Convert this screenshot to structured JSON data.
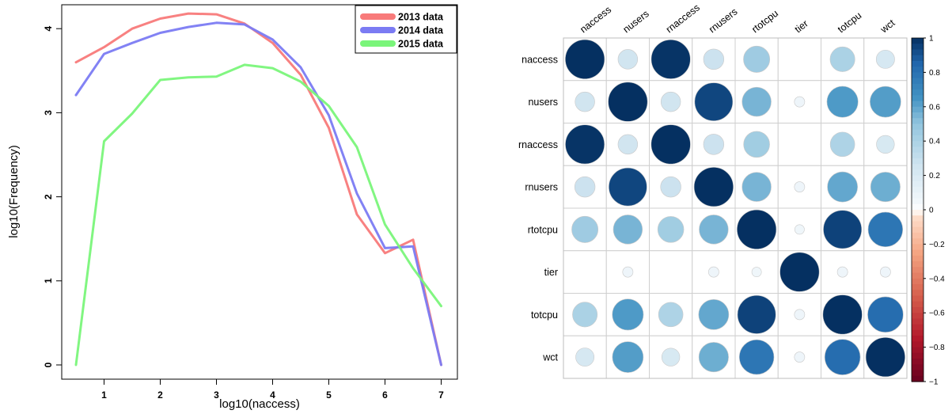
{
  "chart_data": [
    {
      "type": "line",
      "title": "",
      "xlabel": "log10(naccess)",
      "ylabel": "log10(Frequency)",
      "xlim": [
        0.5,
        7
      ],
      "ylim": [
        0,
        4.2
      ],
      "x_ticks": [
        "1",
        "2",
        "3",
        "4",
        "5",
        "6",
        "7"
      ],
      "y_ticks": [
        "0",
        "1",
        "2",
        "3",
        "4"
      ],
      "legend_position": "top-right",
      "grid": false,
      "x": [
        0.5,
        1.0,
        1.5,
        2.0,
        2.5,
        3.0,
        3.5,
        4.0,
        4.5,
        5.0,
        5.5,
        6.0,
        6.5,
        7.0
      ],
      "series": [
        {
          "name": "2013 data",
          "color": "#f87a7a",
          "values": [
            3.6,
            3.78,
            4.0,
            4.12,
            4.18,
            4.17,
            4.06,
            3.83,
            3.45,
            2.82,
            1.79,
            1.33,
            1.49,
            0.0
          ]
        },
        {
          "name": "2014 data",
          "color": "#7b7bf3",
          "values": [
            3.21,
            3.7,
            3.83,
            3.95,
            4.02,
            4.07,
            4.05,
            3.87,
            3.54,
            2.97,
            2.04,
            1.39,
            1.41,
            0.0
          ]
        },
        {
          "name": "2015 data",
          "color": "#7af57a",
          "values": [
            0.0,
            2.66,
            2.99,
            3.39,
            3.42,
            3.43,
            3.57,
            3.53,
            3.37,
            3.08,
            2.59,
            1.67,
            1.15,
            0.7
          ]
        }
      ]
    },
    {
      "type": "heatmap",
      "title": "",
      "variables": [
        "naccess",
        "nusers",
        "rnaccess",
        "rnusers",
        "rtotcpu",
        "tier",
        "totcpu",
        "wct"
      ],
      "matrix": [
        [
          1.0,
          0.25,
          0.99,
          0.27,
          0.45,
          0.0,
          0.4,
          0.22
        ],
        [
          0.25,
          1.0,
          0.25,
          0.94,
          0.55,
          0.07,
          0.63,
          0.62
        ],
        [
          0.99,
          0.25,
          1.0,
          0.27,
          0.44,
          0.0,
          0.39,
          0.21
        ],
        [
          0.27,
          0.94,
          0.27,
          1.0,
          0.55,
          0.07,
          0.59,
          0.57
        ],
        [
          0.45,
          0.55,
          0.44,
          0.55,
          1.0,
          0.06,
          0.95,
          0.78
        ],
        [
          0.0,
          0.07,
          0.0,
          0.07,
          0.06,
          1.0,
          0.07,
          0.07
        ],
        [
          0.4,
          0.63,
          0.39,
          0.59,
          0.95,
          0.07,
          1.0,
          0.82
        ],
        [
          0.22,
          0.62,
          0.21,
          0.57,
          0.78,
          0.07,
          0.82,
          1.0
        ]
      ],
      "colorbar_ticks": [
        "1",
        "0.8",
        "0.6",
        "0.4",
        "0.2",
        "0",
        "−0.2",
        "−0.4",
        "−0.6",
        "−0.8",
        "−1"
      ],
      "colorbar_range": [
        -1,
        1
      ]
    }
  ]
}
